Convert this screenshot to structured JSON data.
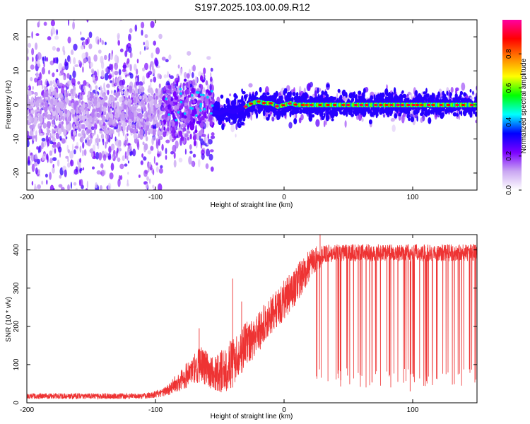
{
  "title": "S197.2025.103.00.09.R12",
  "chart_data": [
    {
      "type": "heatmap",
      "xlabel": "Height of straight line (km)",
      "ylabel": "Frequency (Hz)",
      "xlim": [
        -200,
        150
      ],
      "ylim": [
        -25,
        25
      ],
      "xticks": [
        -200,
        -100,
        0,
        100
      ],
      "yticks": [
        -20,
        -10,
        0,
        10,
        20
      ],
      "colorbar": {
        "label": "Normalized spectral amplitude",
        "range": [
          0.0,
          1.0
        ],
        "ticks": [
          0.0,
          0.2,
          0.4,
          0.6,
          0.8
        ],
        "tick_labels": [
          "0.0",
          "0.2",
          "0.4",
          "0.6",
          "0.8"
        ],
        "colors": [
          "#ffffff",
          "#c9a6f2",
          "#7b00ff",
          "#0000ff",
          "#00ffff",
          "#00ff00",
          "#ffff00",
          "#ff8000",
          "#ff0000",
          "#ff00a0"
        ]
      },
      "regions": [
        {
          "x_range": [
            -200,
            -95
          ],
          "freq_center": 0,
          "core_width": 4,
          "scatter_width": 25,
          "amplitude": 0.15
        },
        {
          "x_range": [
            -95,
            -55
          ],
          "freq_center": 0,
          "core_width": 4,
          "scatter_width": 12,
          "amplitude": 0.25
        },
        {
          "x_range": [
            -55,
            -30
          ],
          "freq_center": -2,
          "core_width": 2,
          "scatter_width": 4,
          "amplitude": 0.6
        },
        {
          "x_range": [
            -30,
            150
          ],
          "freq_center": 0,
          "core_width": 1.5,
          "scatter_width": 4,
          "amplitude": 0.85
        }
      ],
      "ridge": {
        "x": [
          -55,
          -50,
          -45,
          -40,
          -35,
          -30,
          -25,
          -20,
          -15,
          -10,
          -5,
          0,
          5,
          10,
          20,
          40,
          60,
          80,
          100,
          120,
          150
        ],
        "freq": [
          -2,
          -2.5,
          -1.5,
          -2,
          -1.5,
          -0.5,
          0.5,
          1,
          0.5,
          0.5,
          -0.5,
          0,
          0.5,
          0,
          0,
          0,
          0,
          0,
          0,
          0,
          0
        ]
      }
    },
    {
      "type": "line",
      "xlabel": "Height of straight line (km)",
      "ylabel": "SNR (10 * v/v)",
      "xlim": [
        -200,
        150
      ],
      "ylim": [
        0,
        440
      ],
      "xticks": [
        -200,
        -100,
        0,
        100
      ],
      "yticks": [
        0,
        100,
        200,
        300,
        400
      ],
      "color": "#ee3333",
      "envelope": {
        "x": [
          -200,
          -150,
          -110,
          -95,
          -85,
          -75,
          -65,
          -55,
          -45,
          -40,
          -35,
          -30,
          -25,
          -20,
          -15,
          -10,
          -5,
          0,
          5,
          10,
          15,
          20,
          25,
          30,
          40,
          60,
          80,
          100,
          120,
          150
        ],
        "lo": [
          10,
          10,
          10,
          15,
          25,
          40,
          55,
          30,
          25,
          40,
          70,
          90,
          110,
          130,
          160,
          180,
          200,
          215,
          240,
          260,
          290,
          320,
          345,
          360,
          370,
          370,
          370,
          370,
          370,
          370
        ],
        "hi": [
          25,
          25,
          25,
          35,
          70,
          110,
          150,
          120,
          150,
          170,
          190,
          210,
          225,
          240,
          260,
          280,
          300,
          320,
          340,
          360,
          385,
          400,
          410,
          415,
          415,
          415,
          415,
          415,
          415,
          415
        ]
      },
      "dropouts": {
        "x_range": [
          25,
          150
        ],
        "count": 70,
        "floor": [
          40,
          90
        ]
      },
      "spikes": [
        {
          "x": -40,
          "y": 325
        },
        {
          "x": -66,
          "y": 195
        },
        {
          "x": -33,
          "y": 265
        },
        {
          "x": 28,
          "y": 440
        },
        {
          "x": 98,
          "y": 30
        }
      ]
    }
  ]
}
